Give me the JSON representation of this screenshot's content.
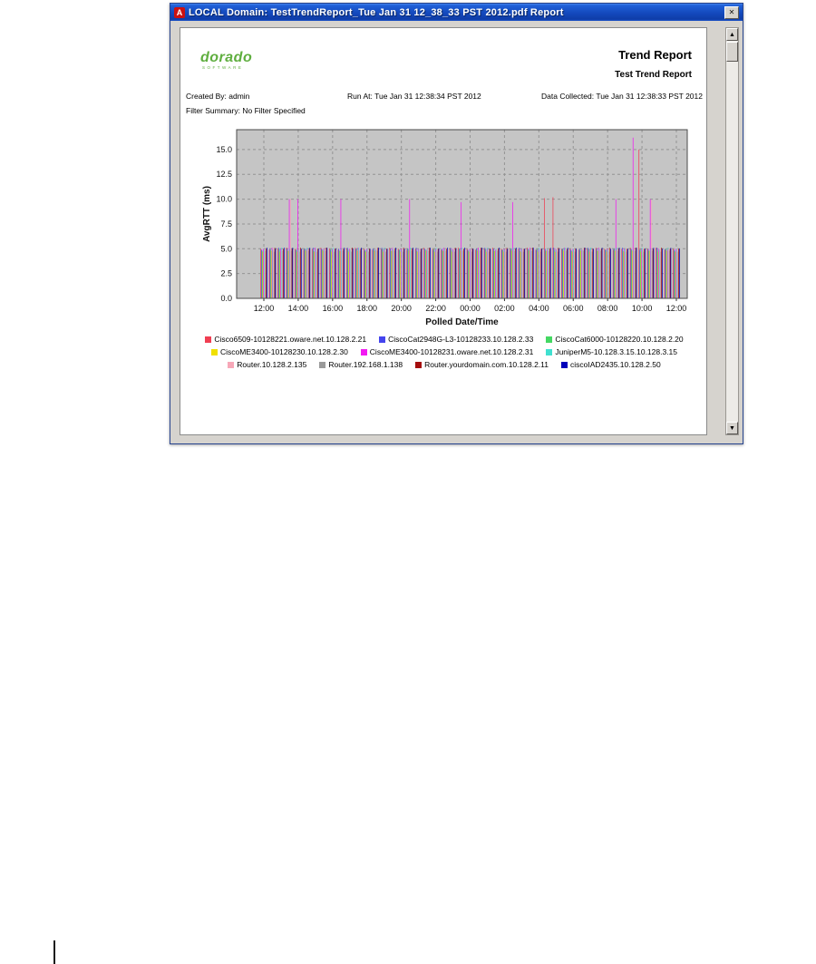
{
  "window": {
    "title": "LOCAL Domain: TestTrendReport_Tue Jan 31 12_38_33 PST 2012.pdf Report",
    "icons": {
      "pdf": "A",
      "close": "✕",
      "scroll_up": "▲",
      "scroll_down": "▼"
    }
  },
  "report": {
    "logo_text": "dorado",
    "logo_sub": "SOFTWARE",
    "title": "Trend Report",
    "subtitle": "Test Trend Report",
    "created_by": "Created By: admin",
    "run_at": "Run At: Tue Jan 31 12:38:34 PST 2012",
    "data_collected": "Data Collected: Tue Jan 31 12:38:33 PST 2012",
    "filter_summary": "Filter Summary: No Filter Specified"
  },
  "chart_data": {
    "type": "bar",
    "title": "",
    "xlabel": "Polled Date/Time",
    "ylabel": "AvgRTT (ms)",
    "ylim": [
      0,
      17
    ],
    "yticks": [
      0.0,
      2.5,
      5.0,
      7.5,
      10.0,
      12.5,
      15.0
    ],
    "xticks": [
      "12:00",
      "14:00",
      "16:00",
      "18:00",
      "20:00",
      "22:00",
      "00:00",
      "02:00",
      "04:00",
      "06:00",
      "08:00",
      "10:00",
      "12:00"
    ],
    "slot_minutes": 30,
    "plot_bg": "#c5c5c5",
    "grid_color": "#949494",
    "series": [
      {
        "name": "Cisco6509-10128221.oware.net.10.128.2.21",
        "color": "#f03e52",
        "values": [
          5,
          4.9,
          5,
          5.1,
          5,
          4.9,
          5,
          5.1,
          5,
          4.9,
          5,
          5.1,
          5,
          4.9,
          5,
          5.1,
          5,
          4.9,
          5,
          5.1,
          5,
          4.9,
          5,
          5.1,
          5,
          4.9,
          5,
          5.1,
          5,
          4.9,
          5,
          5.1,
          4.9,
          10.1,
          10.2,
          5,
          5,
          4.9,
          5,
          5.1,
          5,
          4.9,
          5,
          5.1,
          15,
          5,
          5.1,
          4.9,
          5
        ]
      },
      {
        "name": "CiscoCat2948G-L3-10128233.10.128.2.33",
        "color": "#4444ee",
        "values": [
          4.9,
          5,
          5.1,
          5,
          4.9,
          5,
          5.1,
          5,
          4.9,
          5,
          5.1,
          5,
          4.9,
          5,
          5.1,
          5,
          4.9,
          5,
          5.1,
          5,
          4.9,
          5,
          5.1,
          5,
          4.9,
          5,
          5.1,
          5,
          4.9,
          5,
          5.1,
          5,
          4.9,
          5,
          5.1,
          5,
          4.9,
          5,
          5.1,
          5,
          4.9,
          5,
          5.1,
          5,
          4.9,
          5,
          5.1,
          5,
          4.9
        ]
      },
      {
        "name": "CiscoCat6000-10128220.10.128.2.20",
        "color": "#44d862",
        "values": [
          4.8,
          4.9,
          5,
          4.8,
          4.9,
          5,
          4.8,
          4.9,
          5,
          4.8,
          4.9,
          5,
          4.8,
          4.9,
          5,
          4.8,
          4.9,
          5,
          4.8,
          4.9,
          5,
          4.8,
          4.9,
          5,
          4.8,
          4.9,
          5,
          4.8,
          4.9,
          5,
          4.8,
          4.9,
          5,
          4.8,
          4.9,
          5,
          4.8,
          4.9,
          5,
          4.8,
          4.9,
          5,
          4.8,
          4.9,
          5,
          4.8,
          4.9,
          5,
          4.8
        ]
      },
      {
        "name": "CiscoME3400-10128230.10.128.2.30",
        "color": "#f0e000",
        "values": [
          4.7,
          4.8,
          4.7,
          4.8,
          4.7,
          4.8,
          4.7,
          4.8,
          4.7,
          4.8,
          4.7,
          4.8,
          4.7,
          4.8,
          4.7,
          4.8,
          4.7,
          4.8,
          4.7,
          4.8,
          4.7,
          4.8,
          4.7,
          4.8,
          4.7,
          4.8,
          4.7,
          4.8,
          4.7,
          4.8,
          4.7,
          4.8,
          4.7,
          4.8,
          4.7,
          4.8,
          4.7,
          4.8,
          4.7,
          4.8,
          4.7,
          4.8,
          4.7,
          4.8,
          4.7,
          4.8,
          4.7,
          4.8,
          4.7
        ]
      },
      {
        "name": "CiscoME3400-10128231.oware.net.10.128.2.31",
        "color": "#f219f2",
        "values": [
          5,
          5.1,
          5,
          10,
          10,
          5,
          5.1,
          5,
          5,
          10,
          5,
          5.1,
          5,
          4.9,
          5,
          5.1,
          5,
          10,
          5,
          4.9,
          5,
          5.1,
          5,
          9.7,
          5,
          5.1,
          5,
          4.9,
          5,
          9.7,
          5,
          5.1,
          5,
          4.9,
          5,
          5.1,
          5,
          4.9,
          5,
          5.1,
          5,
          10,
          5,
          16.2,
          5,
          10,
          5,
          4.9,
          5
        ]
      },
      {
        "name": "JuniperM5-10.128.3.15.10.128.3.15",
        "color": "#40e0d0",
        "values": [
          5,
          4.9,
          5.1,
          5,
          4.9,
          5.1,
          5,
          4.9,
          5.1,
          5,
          4.9,
          5.1,
          5,
          4.9,
          5.1,
          5,
          4.9,
          5.1,
          5,
          4.9,
          5.1,
          5,
          4.9,
          5.1,
          5,
          4.9,
          5.1,
          5,
          4.9,
          5.1,
          5,
          4.9,
          5.1,
          5,
          4.9,
          5.1,
          5,
          4.9,
          5.1,
          5,
          4.9,
          5.1,
          5,
          4.9,
          5.1,
          5,
          4.9,
          5.1,
          5
        ]
      },
      {
        "name": "Router.10.128.2.135",
        "color": "#f7a8b8",
        "values": [
          5,
          5,
          4.9,
          10,
          5,
          4.9,
          5,
          5,
          4.9,
          5,
          5,
          4.9,
          5,
          5,
          4.9,
          5,
          5,
          4.9,
          5,
          5,
          4.9,
          5,
          5,
          4.9,
          5,
          5,
          4.9,
          5,
          5,
          4.9,
          5,
          5,
          4.9,
          5,
          5,
          4.9,
          5,
          5,
          4.9,
          5,
          5,
          4.9,
          5,
          5,
          5,
          9.9,
          4.9,
          5,
          5
        ]
      },
      {
        "name": "Router.192.168.1.138",
        "color": "#9a9a9a",
        "values": [
          4.8,
          4.7,
          4.8,
          4.8,
          4.7,
          4.8,
          4.7,
          4.8,
          4.7,
          4.8,
          4.7,
          4.8,
          4.7,
          4.8,
          4.7,
          4.8,
          4.7,
          4.8,
          4.7,
          4.8,
          4.7,
          4.8,
          4.7,
          4.8,
          4.7,
          4.8,
          4.7,
          4.8,
          4.7,
          4.8,
          4.7,
          4.8,
          4.7,
          4.8,
          4.7,
          4.8,
          4.7,
          4.8,
          4.7,
          4.8,
          4.7,
          4.8,
          4.7,
          4.8,
          4.7,
          4.8,
          4.7,
          4.8,
          4.7
        ]
      },
      {
        "name": "Router.yourdomain.com.10.128.2.11",
        "color": "#a50d0d",
        "values": [
          5,
          5.1,
          5,
          5,
          5.1,
          5,
          5,
          5.1,
          5,
          5,
          5.1,
          5,
          5,
          5.1,
          5,
          5,
          5.1,
          5,
          5,
          5.1,
          5,
          5,
          5.1,
          5,
          5,
          5.1,
          5,
          5,
          5.1,
          5,
          5,
          5.1,
          5,
          5,
          5.1,
          5,
          5,
          5.1,
          5,
          5,
          5.1,
          5,
          5,
          5.1,
          5,
          5,
          5.1,
          5,
          5
        ]
      },
      {
        "name": "ciscoIAD2435.10.128.2.50",
        "color": "#0000bb",
        "values": [
          5.1,
          5,
          5.1,
          5.1,
          5,
          5.1,
          5,
          5.1,
          5,
          5.1,
          5,
          5.1,
          5,
          5.1,
          5,
          5.1,
          5,
          5.1,
          5,
          5.1,
          5,
          5.1,
          5,
          5.1,
          5,
          5.1,
          5,
          5.1,
          5,
          5.1,
          5,
          5.1,
          5,
          5.1,
          5,
          5.1,
          5,
          5.1,
          5,
          5.1,
          5,
          5.1,
          5,
          5.1,
          5,
          5.1,
          5,
          5.1,
          5
        ]
      }
    ]
  }
}
